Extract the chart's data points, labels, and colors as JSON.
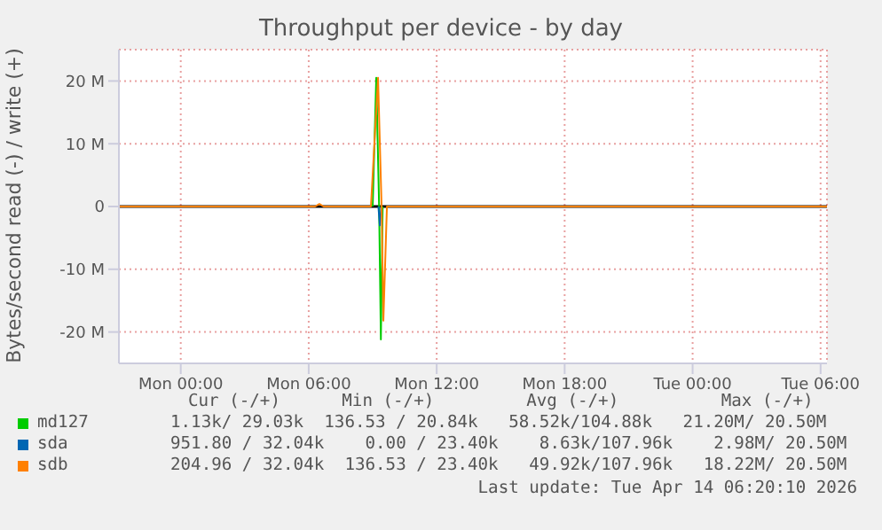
{
  "chart_data": {
    "type": "line",
    "title": "Throughput per device - by day",
    "ylabel": "Bytes/second read (-) / write (+)",
    "xlim": [
      "2026-04-12T21:06",
      "2026-04-14T06:18"
    ],
    "xticks": [
      {
        "value": "2026-04-13T00:00",
        "label": "Mon 00:00"
      },
      {
        "value": "2026-04-13T06:00",
        "label": "Mon 06:00"
      },
      {
        "value": "2026-04-13T12:00",
        "label": "Mon 12:00"
      },
      {
        "value": "2026-04-13T18:00",
        "label": "Mon 18:00"
      },
      {
        "value": "2026-04-14T00:00",
        "label": "Tue 00:00"
      },
      {
        "value": "2026-04-14T06:00",
        "label": "Tue 06:00"
      }
    ],
    "ylim": [
      -25,
      25
    ],
    "yticks": [
      {
        "value": -20,
        "label": "-20 M"
      },
      {
        "value": -10,
        "label": "-10 M"
      },
      0,
      {
        "value": 10,
        "label": "10 M"
      },
      {
        "value": 20,
        "label": "20 M"
      }
    ],
    "series": [
      {
        "name": "md127",
        "color": "#00cc00",
        "x": [
          "2026-04-13T09:00",
          "2026-04-13T09:10",
          "2026-04-13T09:18",
          "2026-04-13T09:23",
          "2026-04-13T09:28"
        ],
        "values": [
          0,
          20.5,
          0,
          -21.2,
          0
        ]
      },
      {
        "name": "sda",
        "color": "#0066b3",
        "x": [
          "2026-04-13T09:16",
          "2026-04-13T09:20",
          "2026-04-13T09:24"
        ],
        "values": [
          0,
          -3,
          0
        ]
      },
      {
        "name": "sdb",
        "color": "#ff8000",
        "x": [
          "2026-04-12T21:06",
          "2026-04-13T06:18",
          "2026-04-13T06:30",
          "2026-04-13T06:42",
          "2026-04-13T08:55",
          "2026-04-13T09:15",
          "2026-04-13T09:25",
          "2026-04-13T09:30",
          "2026-04-13T09:40",
          "2026-04-14T06:18"
        ],
        "values": [
          0,
          0,
          0.4,
          0,
          0,
          20.5,
          0,
          -18.2,
          0,
          0
        ]
      }
    ],
    "ref_lines": [
      {
        "axis": "y",
        "value": 0,
        "color": "#000000"
      }
    ],
    "grid": true,
    "legend": "bottom",
    "marker": "none",
    "line_style": "solid",
    "annotations": [
      "Cur (-/+)      Min (-/+)         Avg (-/+)          Max (-/+)",
      "1.13k/ 29.03k  136.53 / 20.84k   58.52k/104.88k   21.20M/ 20.50M",
      "951.80 / 32.04k    0.00 / 23.40k    8.63k/107.96k    2.98M/ 20.50M",
      "204.96 / 32.04k  136.53 / 23.40k   49.92k/107.96k   18.22M/ 20.50M",
      "Last update: Tue Apr 14 06:20:10 2026"
    ]
  }
}
